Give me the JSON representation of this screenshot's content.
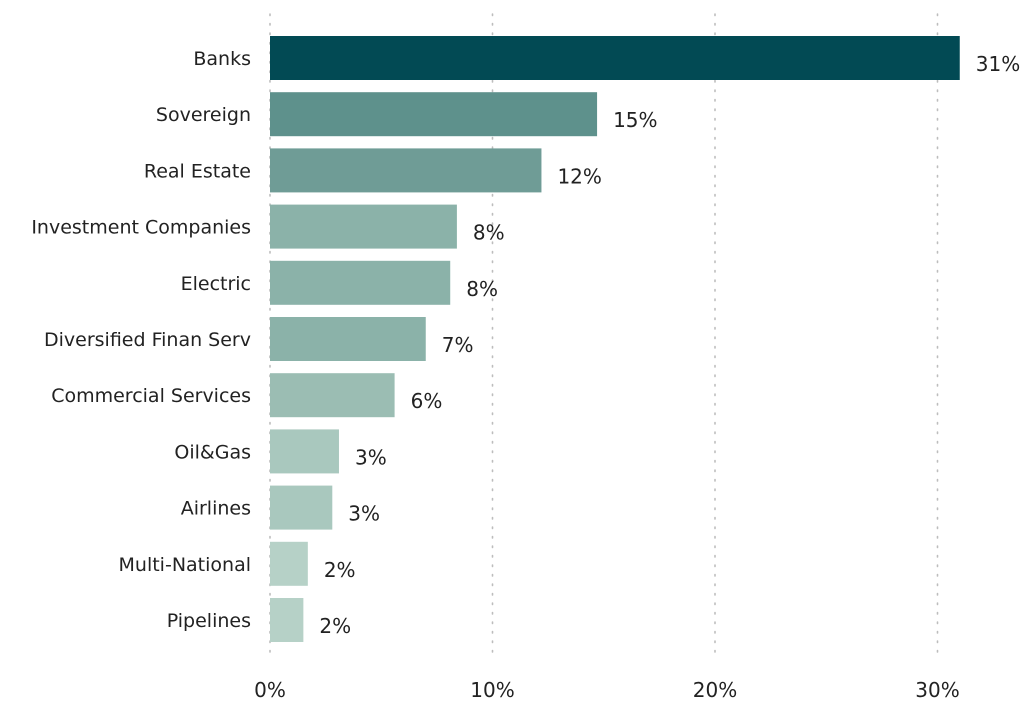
{
  "chart_data": {
    "type": "bar",
    "orientation": "horizontal",
    "categories": [
      "Banks",
      "Sovereign",
      "Real Estate",
      "Investment Companies",
      "Electric",
      "Diversified Finan Serv",
      "Commercial Services",
      "Oil&Gas",
      "Airlines",
      "Multi-National",
      "Pipelines"
    ],
    "values": [
      31,
      14.7,
      12.2,
      8.4,
      8.1,
      7.0,
      5.6,
      3.1,
      2.8,
      1.7,
      1.5
    ],
    "value_labels": [
      "31%",
      "15%",
      "12%",
      "8%",
      "8%",
      "7%",
      "6%",
      "3%",
      "3%",
      "2%",
      "2%"
    ],
    "bar_colors": [
      "#024a54",
      "#5e918c",
      "#6f9c96",
      "#8bb2a9",
      "#8bb2a9",
      "#8bb2a9",
      "#9bbdb3",
      "#a9c8be",
      "#a9c8be",
      "#b6d1c7",
      "#b6d1c7"
    ],
    "xlim": [
      0,
      31
    ],
    "x_ticks": [
      0,
      10,
      20,
      30
    ],
    "x_tick_labels": [
      "0%",
      "10%",
      "20%",
      "30%"
    ],
    "grid": "vertical dotted",
    "title": "",
    "xlabel": "",
    "ylabel": ""
  }
}
